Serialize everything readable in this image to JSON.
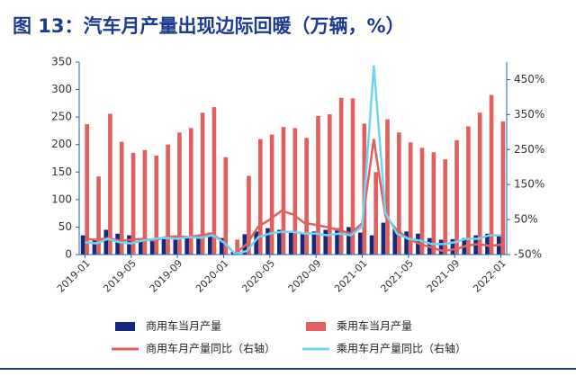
{
  "chart_data": {
    "type": "bar",
    "title": "图 13：汽车月产量出现边际回暖（万辆，%）",
    "categories": [
      "2019-01",
      null,
      null,
      null,
      "2019-05",
      null,
      null,
      null,
      "2019-09",
      null,
      null,
      null,
      "2020-01",
      null,
      null,
      null,
      "2020-05",
      null,
      null,
      null,
      "2020-09",
      null,
      null,
      null,
      "2021-01",
      null,
      null,
      null,
      "2021-05",
      null,
      null,
      null,
      "2021-09",
      null,
      null,
      null,
      "2022-01"
    ],
    "ylim": [
      0,
      350
    ],
    "yticks": [
      0,
      50,
      100,
      150,
      200,
      250,
      300,
      350
    ],
    "y2lim": [
      -50,
      500
    ],
    "y2ticks": [
      {
        "value": -50,
        "label": "-50%"
      },
      {
        "value": 50,
        "label": "50%"
      },
      {
        "value": 150,
        "label": "150%"
      },
      {
        "value": 250,
        "label": "250%"
      },
      {
        "value": 350,
        "label": "350%"
      },
      {
        "value": 450,
        "label": "450%"
      }
    ],
    "series": [
      {
        "name": "商用车当月产量",
        "type": "bar",
        "color": "#15287e",
        "values": [
          35,
          28,
          45,
          38,
          35,
          30,
          28,
          28,
          30,
          32,
          35,
          40,
          30,
          5,
          37,
          42,
          48,
          45,
          40,
          38,
          42,
          45,
          48,
          50,
          40,
          35,
          58,
          48,
          42,
          38,
          30,
          27,
          28,
          30,
          35,
          38,
          35
        ]
      },
      {
        "name": "乘用车当月产量",
        "type": "bar",
        "color": "#e0605f",
        "values": [
          237,
          142,
          256,
          205,
          185,
          190,
          180,
          200,
          222,
          230,
          258,
          268,
          177,
          27,
          143,
          210,
          218,
          232,
          230,
          212,
          252,
          255,
          285,
          284,
          238,
          150,
          246,
          222,
          204,
          194,
          186,
          173,
          208,
          233,
          258,
          290,
          242
        ]
      },
      {
        "name": "商用车月产量同比（右轴）",
        "type": "line",
        "axis": "y2",
        "color": "#e0605f",
        "values": [
          -5,
          -8,
          -3,
          -10,
          -8,
          -5,
          -10,
          0,
          2,
          0,
          5,
          10,
          -15,
          -48,
          -20,
          30,
          50,
          75,
          65,
          40,
          35,
          28,
          20,
          10,
          40,
          280,
          60,
          20,
          -5,
          -20,
          -30,
          -40,
          -35,
          -25,
          -20,
          -25,
          -22
        ]
      },
      {
        "name": "乘用车月产量同比（右轴）",
        "type": "line",
        "axis": "y2",
        "color": "#6dd4f5",
        "values": [
          -15,
          -18,
          -5,
          -15,
          -18,
          -10,
          -5,
          -2,
          -5,
          0,
          -2,
          5,
          -15,
          -48,
          -40,
          0,
          10,
          15,
          15,
          10,
          10,
          5,
          10,
          5,
          30,
          490,
          70,
          10,
          -5,
          -10,
          -20,
          -20,
          -15,
          -5,
          -5,
          5,
          5
        ]
      }
    ]
  }
}
